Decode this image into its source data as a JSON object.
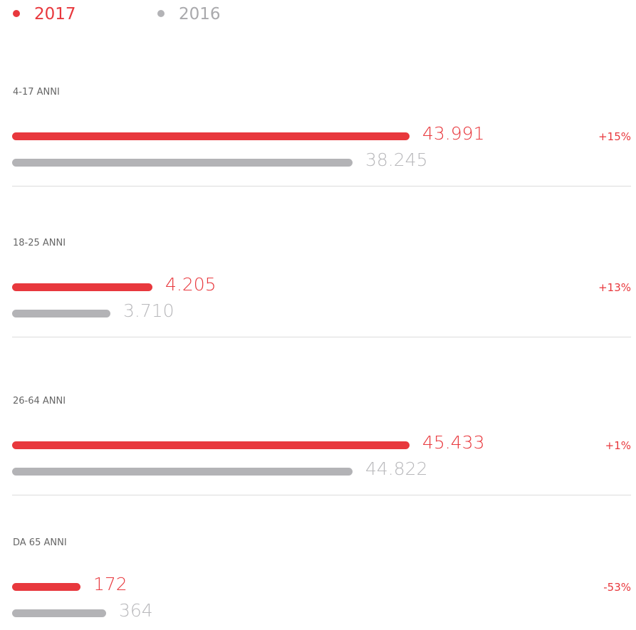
{
  "legend": [
    {
      "label": "2017",
      "color": "#e8383d"
    },
    {
      "label": "2016",
      "color": "#b3b3b6"
    }
  ],
  "groups": [
    {
      "label": "4-17 ANNI",
      "value_2017": "43.991",
      "value_2016": "38.245",
      "change": "+15%"
    },
    {
      "label": "18-25 ANNI",
      "value_2017": "4.205",
      "value_2016": "3.710",
      "change": "+13%"
    },
    {
      "label": "26-64 ANNI",
      "value_2017": "45.433",
      "value_2016": "44.822",
      "change": "+1%"
    },
    {
      "label": "DA 65 ANNI",
      "value_2017": "172",
      "value_2016": "364",
      "change": "-53%"
    }
  ]
}
